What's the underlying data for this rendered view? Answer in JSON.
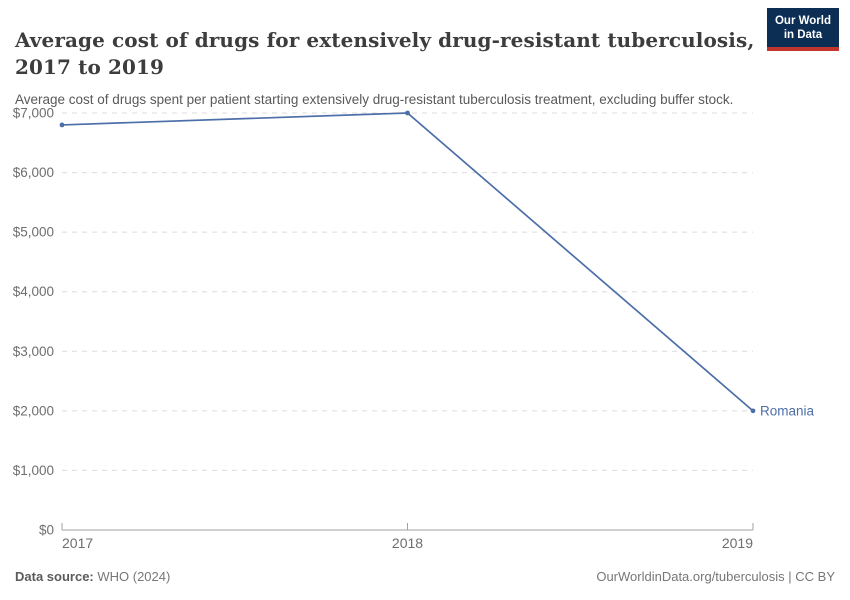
{
  "header": {
    "title_line1": "Average cost of drugs for extensively drug-resistant tuberculosis,",
    "title_line2": "2017 to 2019",
    "subtitle": "Average cost of drugs spent per patient starting extensively drug-resistant tuberculosis treatment, excluding buffer stock.",
    "logo": {
      "line1": "Our World",
      "line2": "in Data",
      "bg_color": "#0c2d54",
      "accent_color": "#c0352d"
    }
  },
  "chart_data": {
    "type": "line",
    "title": "Average cost of drugs for extensively drug-resistant tuberculosis, 2017 to 2019",
    "x": [
      2017,
      2018,
      2019
    ],
    "x_tick_labels": [
      "2017",
      "2018",
      "2019"
    ],
    "series": [
      {
        "name": "Romania",
        "values": [
          6800,
          7000,
          2000
        ],
        "color": "#4c6ea9"
      }
    ],
    "ylim": [
      0,
      7000
    ],
    "y_ticks": [
      0,
      1000,
      2000,
      3000,
      4000,
      5000,
      6000,
      7000
    ],
    "y_tick_labels": [
      "$0",
      "$1,000",
      "$2,000",
      "$3,000",
      "$4,000",
      "$5,000",
      "$6,000",
      "$7,000"
    ],
    "grid": "horizontal-dashed",
    "legend": "end-of-line-label",
    "ylabel": "",
    "xlabel": ""
  },
  "footer": {
    "source_label": "Data source:",
    "source_value": " WHO (2024)",
    "credit": "OurWorldinData.org/tuberculosis | CC BY"
  }
}
